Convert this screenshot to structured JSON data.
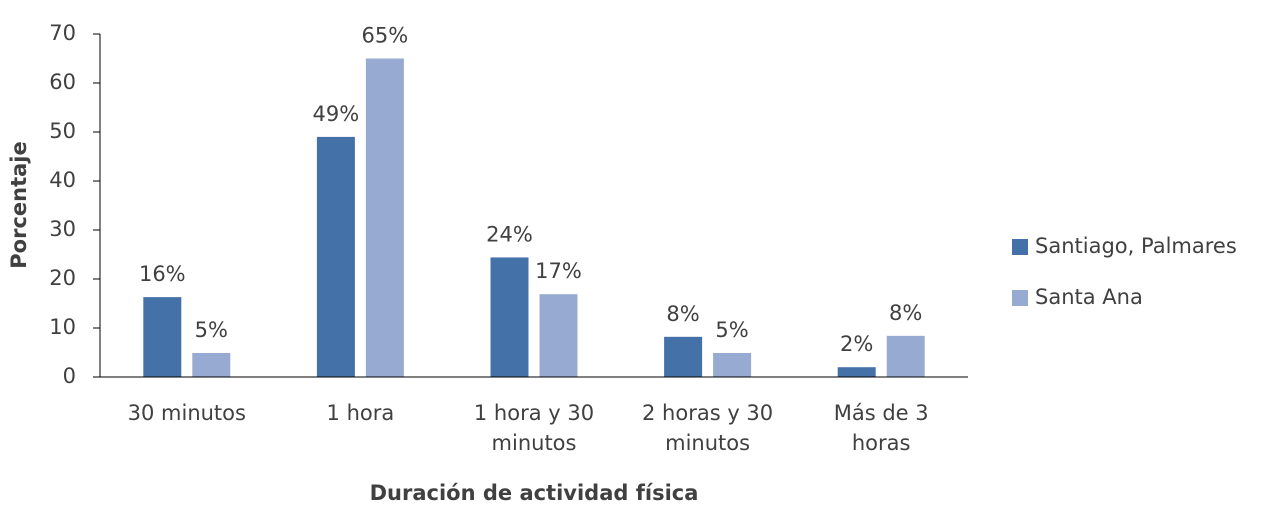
{
  "chart_data": {
    "type": "bar",
    "x_label": "Duración de actividad física",
    "y_label": "Porcentaje",
    "categories": [
      "30 minutos",
      "1 hora",
      "1 hora y 30 minutos",
      "2 horas y 30 minutos",
      "Más de 3 horas"
    ],
    "series": [
      {
        "name": "Santiago, Palmares",
        "color": "#4472a8",
        "values": [
          16.3,
          49,
          24.4,
          8.2,
          2
        ],
        "value_labels": [
          "16%",
          "49%",
          "24%",
          "8%",
          "2%"
        ]
      },
      {
        "name": "Santa Ana",
        "color": "#97abd2",
        "values": [
          4.9,
          65,
          16.9,
          4.9,
          8.4
        ],
        "value_labels": [
          "5%",
          "65%",
          "17%",
          "5%",
          "8%"
        ]
      }
    ],
    "ylim": [
      0,
      70
    ],
    "yticks": [
      0,
      10,
      20,
      30,
      40,
      50,
      60,
      70
    ],
    "legend": "right"
  }
}
